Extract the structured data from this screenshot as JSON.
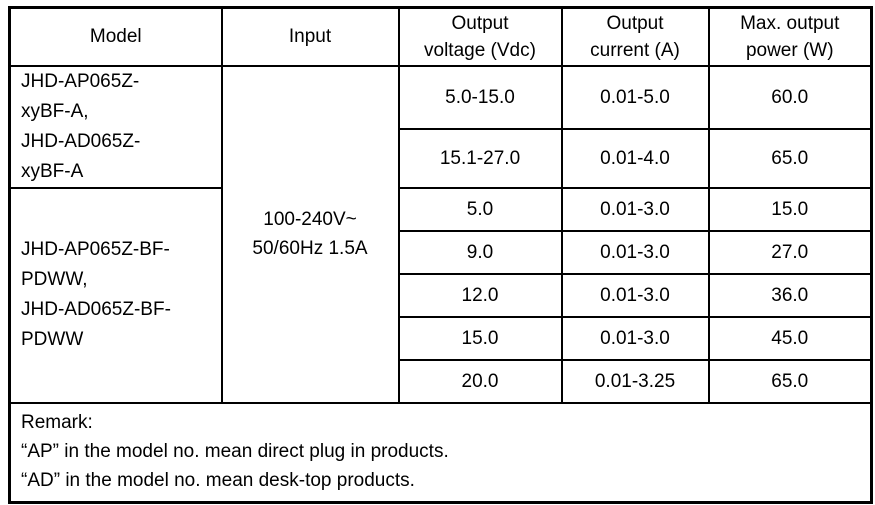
{
  "table": {
    "headers": {
      "model": "Model",
      "input": "Input",
      "voltage": "Output\nvoltage (Vdc)",
      "current": "Output\ncurrent (A)",
      "power": "Max. output\npower (W)"
    },
    "input_value": "100-240V~\n50/60Hz 1.5A",
    "model_groups": [
      {
        "model": "JHD-AP065Z-\nxyBF-A,\nJHD-AD065Z-\nxyBF-A"
      },
      {
        "model": "JHD-AP065Z-BF-\nPDWW,\nJHD-AD065Z-BF-\nPDWW"
      }
    ],
    "rows": [
      {
        "voltage": "5.0-15.0",
        "current": "0.01-5.0",
        "power": "60.0"
      },
      {
        "voltage": "15.1-27.0",
        "current": "0.01-4.0",
        "power": "65.0"
      },
      {
        "voltage": "5.0",
        "current": "0.01-3.0",
        "power": "15.0"
      },
      {
        "voltage": "9.0",
        "current": "0.01-3.0",
        "power": "27.0"
      },
      {
        "voltage": "12.0",
        "current": "0.01-3.0",
        "power": "36.0"
      },
      {
        "voltage": "15.0",
        "current": "0.01-3.0",
        "power": "45.0"
      },
      {
        "voltage": "20.0",
        "current": "0.01-3.25",
        "power": "65.0"
      }
    ],
    "remark": {
      "title": "Remark:",
      "lines": [
        "“AP” in the model no. mean direct plug in products.",
        "“AD” in the model no. mean desk-top products."
      ]
    },
    "colors": {
      "border": "#000000",
      "text": "#000000",
      "background": "#ffffff"
    }
  },
  "chart_data": {
    "type": "table",
    "columns": [
      "Model",
      "Input",
      "Output voltage (Vdc)",
      "Output current (A)",
      "Max. output power (W)"
    ],
    "rows": [
      [
        "JHD-AP065Z-xyBF-A, JHD-AD065Z-xyBF-A",
        "100-240V~ 50/60Hz 1.5A",
        "5.0-15.0",
        "0.01-5.0",
        "60.0"
      ],
      [
        "JHD-AP065Z-xyBF-A, JHD-AD065Z-xyBF-A",
        "100-240V~ 50/60Hz 1.5A",
        "15.1-27.0",
        "0.01-4.0",
        "65.0"
      ],
      [
        "JHD-AP065Z-BF-PDWW, JHD-AD065Z-BF-PDWW",
        "100-240V~ 50/60Hz 1.5A",
        "5.0",
        "0.01-3.0",
        "15.0"
      ],
      [
        "JHD-AP065Z-BF-PDWW, JHD-AD065Z-BF-PDWW",
        "100-240V~ 50/60Hz 1.5A",
        "9.0",
        "0.01-3.0",
        "27.0"
      ],
      [
        "JHD-AP065Z-BF-PDWW, JHD-AD065Z-BF-PDWW",
        "100-240V~ 50/60Hz 1.5A",
        "12.0",
        "0.01-3.0",
        "36.0"
      ],
      [
        "JHD-AP065Z-BF-PDWW, JHD-AD065Z-BF-PDWW",
        "100-240V~ 50/60Hz 1.5A",
        "15.0",
        "0.01-3.0",
        "45.0"
      ],
      [
        "JHD-AP065Z-BF-PDWW, JHD-AD065Z-BF-PDWW",
        "100-240V~ 50/60Hz 1.5A",
        "20.0",
        "0.01-3.25",
        "65.0"
      ]
    ]
  }
}
